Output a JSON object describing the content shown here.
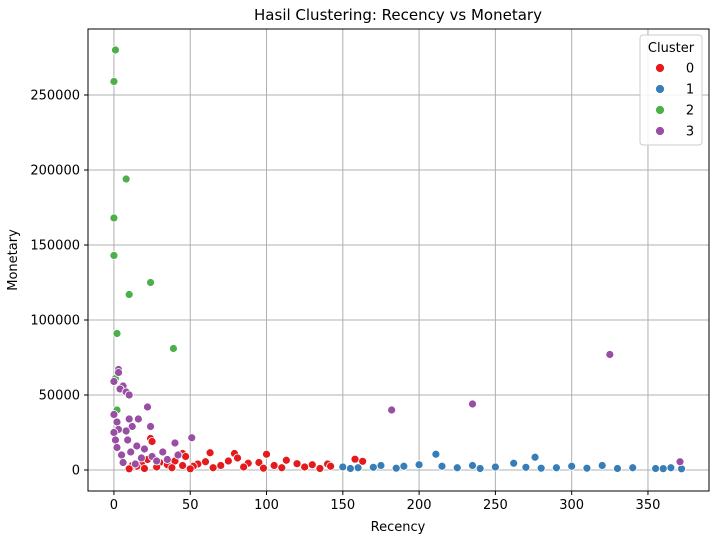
{
  "chart_data": {
    "type": "scatter",
    "title": "Hasil Clustering: Recency vs Monetary",
    "xlabel": "Recency",
    "ylabel": "Monetary",
    "xlim": [
      -17,
      390
    ],
    "ylim": [
      -14000,
      294000
    ],
    "xticks": [
      0,
      50,
      100,
      150,
      200,
      250,
      300,
      350
    ],
    "yticks": [
      0,
      50000,
      100000,
      150000,
      200000,
      250000
    ],
    "grid": true,
    "legend": {
      "title": "Cluster",
      "placement": "top-right"
    },
    "series": [
      {
        "name": "0",
        "color": "#e41a1c",
        "points": [
          [
            24,
            21000
          ],
          [
            25,
            19000
          ],
          [
            45,
            11000
          ],
          [
            47,
            9000
          ],
          [
            63,
            11500
          ],
          [
            79,
            11000
          ],
          [
            81,
            8000
          ],
          [
            100,
            10500
          ],
          [
            113,
            6500
          ],
          [
            158,
            7200
          ],
          [
            163,
            5800
          ],
          [
            140,
            4000
          ],
          [
            130,
            3500
          ],
          [
            120,
            4200
          ],
          [
            105,
            3000
          ],
          [
            95,
            5000
          ],
          [
            88,
            4500
          ],
          [
            75,
            6000
          ],
          [
            70,
            3000
          ],
          [
            60,
            5500
          ],
          [
            55,
            4000
          ],
          [
            52,
            2500
          ],
          [
            40,
            6000
          ],
          [
            35,
            3500
          ],
          [
            30,
            5000
          ],
          [
            28,
            2000
          ],
          [
            22,
            7000
          ],
          [
            18,
            4000
          ],
          [
            15,
            2500
          ],
          [
            12,
            3000
          ],
          [
            110,
            1500
          ],
          [
            125,
            2000
          ],
          [
            135,
            1000
          ],
          [
            142,
            2500
          ],
          [
            98,
            1200
          ],
          [
            85,
            2000
          ],
          [
            65,
            1500
          ],
          [
            50,
            800
          ],
          [
            45,
            3000
          ],
          [
            38,
            1500
          ],
          [
            20,
            1000
          ],
          [
            10,
            800
          ]
        ]
      },
      {
        "name": "1",
        "color": "#377eb8",
        "points": [
          [
            211,
            10500
          ],
          [
            276,
            8500
          ],
          [
            235,
            3000
          ],
          [
            262,
            4500
          ],
          [
            250,
            2000
          ],
          [
            200,
            3500
          ],
          [
            190,
            2500
          ],
          [
            175,
            3000
          ],
          [
            160,
            1500
          ],
          [
            150,
            2000
          ],
          [
            300,
            2500
          ],
          [
            320,
            3000
          ],
          [
            340,
            1500
          ],
          [
            355,
            1000
          ],
          [
            365,
            1500
          ],
          [
            372,
            800
          ],
          [
            310,
            1200
          ],
          [
            290,
            1500
          ],
          [
            270,
            1800
          ],
          [
            225,
            1500
          ],
          [
            215,
            2500
          ],
          [
            185,
            1200
          ],
          [
            170,
            1800
          ],
          [
            155,
            1000
          ],
          [
            240,
            1000
          ],
          [
            280,
            1200
          ],
          [
            330,
            1000
          ],
          [
            360,
            900
          ]
        ]
      },
      {
        "name": "2",
        "color": "#4daf4a",
        "points": [
          [
            1,
            280000
          ],
          [
            0,
            259000
          ],
          [
            8,
            194000
          ],
          [
            0,
            168000
          ],
          [
            0,
            143000
          ],
          [
            24,
            125000
          ],
          [
            10,
            117000
          ],
          [
            2,
            91000
          ],
          [
            39,
            81000
          ],
          [
            1,
            61000
          ],
          [
            2,
            40000
          ]
        ]
      },
      {
        "name": "3",
        "color": "#984ea3",
        "points": [
          [
            325,
            77000
          ],
          [
            235,
            44000
          ],
          [
            182,
            40000
          ],
          [
            371,
            5500
          ],
          [
            3,
            67000
          ],
          [
            3,
            65000
          ],
          [
            0,
            59000
          ],
          [
            6,
            56000
          ],
          [
            4,
            54000
          ],
          [
            8,
            52000
          ],
          [
            10,
            50000
          ],
          [
            22,
            42000
          ],
          [
            0,
            37000
          ],
          [
            10,
            34000
          ],
          [
            16,
            34000
          ],
          [
            2,
            32000
          ],
          [
            24,
            29000
          ],
          [
            12,
            29000
          ],
          [
            3,
            27000
          ],
          [
            0,
            25000
          ],
          [
            8,
            26000
          ],
          [
            51,
            21500
          ],
          [
            1,
            20000
          ],
          [
            9,
            20000
          ],
          [
            15,
            16000
          ],
          [
            20,
            14000
          ],
          [
            32,
            12000
          ],
          [
            40,
            18000
          ],
          [
            5,
            10000
          ],
          [
            2,
            15000
          ],
          [
            11,
            12000
          ],
          [
            18,
            8000
          ],
          [
            25,
            9000
          ],
          [
            28,
            6000
          ],
          [
            35,
            7000
          ],
          [
            42,
            10000
          ],
          [
            6,
            5000
          ],
          [
            14,
            4000
          ]
        ]
      }
    ]
  }
}
